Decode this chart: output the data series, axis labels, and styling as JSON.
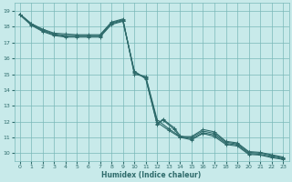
{
  "xlabel": "Humidex (Indice chaleur)",
  "bg_color": "#c8eaea",
  "grid_color": "#7ab8b8",
  "line_color": "#2e6b6b",
  "xlim": [
    -0.5,
    23.5
  ],
  "ylim": [
    9.5,
    19.5
  ],
  "xticks": [
    0,
    1,
    2,
    3,
    4,
    5,
    6,
    7,
    8,
    9,
    10,
    11,
    12,
    13,
    14,
    15,
    16,
    17,
    18,
    19,
    20,
    21,
    22,
    23
  ],
  "yticks": [
    10,
    11,
    12,
    13,
    14,
    15,
    16,
    17,
    18,
    19
  ],
  "lines": [
    {
      "x": [
        0,
        1,
        2,
        3,
        4,
        5,
        6,
        7,
        8,
        9,
        10,
        11,
        12,
        13,
        14,
        15,
        16,
        17,
        18,
        19,
        20,
        21,
        22,
        23
      ],
      "y": [
        18.8,
        18.2,
        17.85,
        17.6,
        17.55,
        17.5,
        17.5,
        17.5,
        18.3,
        18.5,
        15.0,
        14.85,
        12.1,
        11.55,
        11.05,
        11.05,
        11.5,
        11.35,
        10.75,
        10.65,
        10.1,
        10.05,
        9.9,
        9.75
      ]
    },
    {
      "x": [
        0,
        1,
        2,
        3,
        4,
        5,
        6,
        7,
        8,
        9,
        10,
        11,
        12,
        13,
        14,
        15,
        16,
        17,
        18,
        19,
        20,
        21,
        22,
        23
      ],
      "y": [
        18.8,
        18.2,
        17.8,
        17.55,
        17.45,
        17.45,
        17.45,
        17.45,
        18.25,
        18.45,
        15.1,
        14.8,
        11.95,
        11.45,
        11.0,
        11.0,
        11.4,
        11.25,
        10.7,
        10.58,
        10.05,
        10.0,
        9.85,
        9.7
      ]
    },
    {
      "x": [
        0,
        1,
        2,
        3,
        4,
        5,
        6,
        7,
        8,
        9,
        10,
        11,
        12,
        12.5,
        13.5,
        14,
        15,
        16,
        17,
        18,
        19,
        20,
        21,
        22,
        23
      ],
      "y": [
        18.8,
        18.15,
        17.75,
        17.5,
        17.4,
        17.4,
        17.4,
        17.4,
        18.2,
        18.4,
        15.15,
        14.75,
        11.85,
        12.15,
        11.6,
        11.1,
        10.9,
        11.3,
        11.15,
        10.62,
        10.52,
        9.98,
        9.92,
        9.78,
        9.65
      ]
    },
    {
      "x": [
        0,
        1,
        2,
        3,
        4,
        5,
        6,
        7,
        8,
        9,
        10,
        11,
        12,
        12.5,
        13.5,
        14,
        15,
        16,
        17,
        18,
        19,
        20,
        21,
        22,
        23
      ],
      "y": [
        18.75,
        18.1,
        17.7,
        17.45,
        17.35,
        17.35,
        17.35,
        17.35,
        18.15,
        18.35,
        15.2,
        14.7,
        11.8,
        12.1,
        11.5,
        11.0,
        10.85,
        11.25,
        11.05,
        10.55,
        10.45,
        9.92,
        9.88,
        9.72,
        9.6
      ]
    }
  ]
}
